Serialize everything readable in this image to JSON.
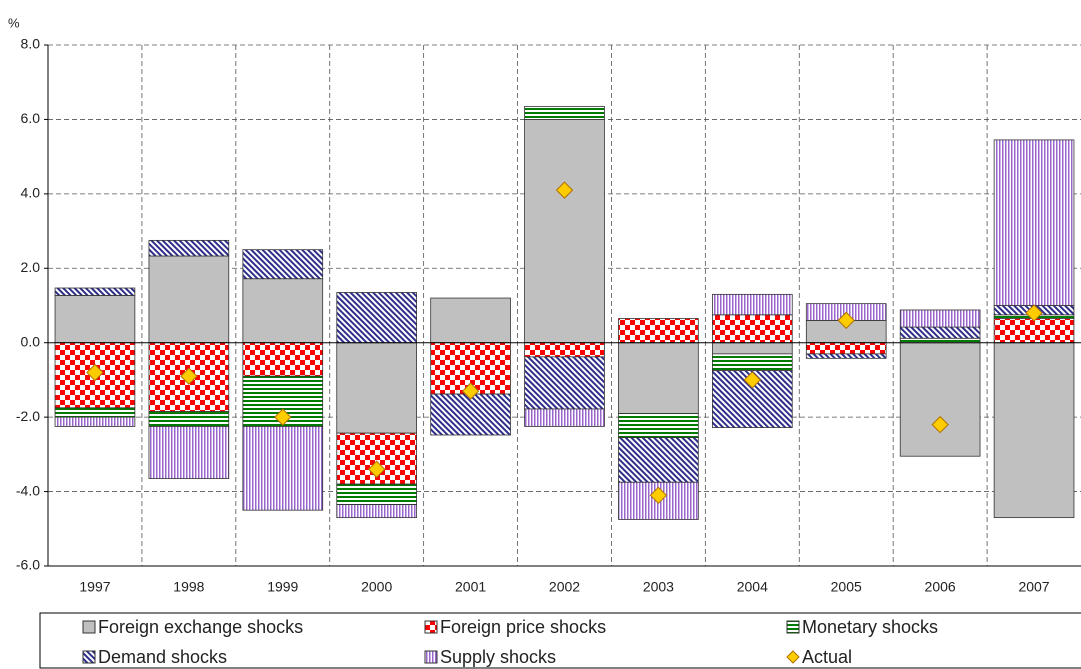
{
  "chart_data": {
    "type": "bar",
    "stacked": true,
    "y_label": "%",
    "categories": [
      "1997",
      "1998",
      "1999",
      "2000",
      "2001",
      "2002",
      "2003",
      "2004",
      "2005",
      "2006",
      "2007"
    ],
    "series": [
      {
        "name": "Foreign exchange shocks",
        "color": "#c0c0c0",
        "values": [
          1.27,
          2.33,
          1.72,
          -2.43,
          1.2,
          6.0,
          -1.9,
          -0.3,
          0.6,
          -3.05,
          -4.7
        ]
      },
      {
        "name": "Foreign price shocks",
        "color": "#ff0000",
        "values": [
          -1.75,
          -1.85,
          -0.9,
          -1.37,
          -1.38,
          -0.38,
          0.65,
          0.75,
          -0.3,
          0,
          0.65
        ]
      },
      {
        "name": "Monetary shocks",
        "color": "#007a00",
        "values": [
          -0.25,
          -0.4,
          -1.35,
          -0.55,
          0,
          0.35,
          -0.65,
          -0.45,
          0,
          0.12,
          0.1
        ]
      },
      {
        "name": "Demand shocks",
        "color": "#2e2e8a",
        "values": [
          0.2,
          0.42,
          0.78,
          1.35,
          -1.1,
          -1.4,
          -1.2,
          -1.53,
          -0.12,
          0.3,
          0.25
        ]
      },
      {
        "name": "Supply shocks",
        "color": "#9966cc",
        "values": [
          -0.25,
          -1.4,
          -2.25,
          -0.35,
          0,
          -0.47,
          -1.0,
          0.55,
          0.45,
          0.46,
          4.45
        ]
      },
      {
        "name": "Actual",
        "type": "scatter",
        "color": "#ffcc00",
        "values": [
          -0.8,
          -0.9,
          -2.0,
          -3.4,
          -1.3,
          4.1,
          -4.1,
          -1.0,
          0.6,
          -2.2,
          0.8
        ]
      }
    ],
    "ylim": [
      -6,
      8
    ],
    "yticks": [
      {
        "value": -6,
        "label": "-6.0"
      },
      {
        "value": -4,
        "label": "-4.0"
      },
      {
        "value": -2,
        "label": "-2.0"
      },
      {
        "value": 0,
        "label": "0.0"
      },
      {
        "value": 2,
        "label": "2.0"
      },
      {
        "value": 4,
        "label": "4.0"
      },
      {
        "value": 6,
        "label": "6.0"
      },
      {
        "value": 8,
        "label": "8.0"
      }
    ],
    "grid": true
  }
}
